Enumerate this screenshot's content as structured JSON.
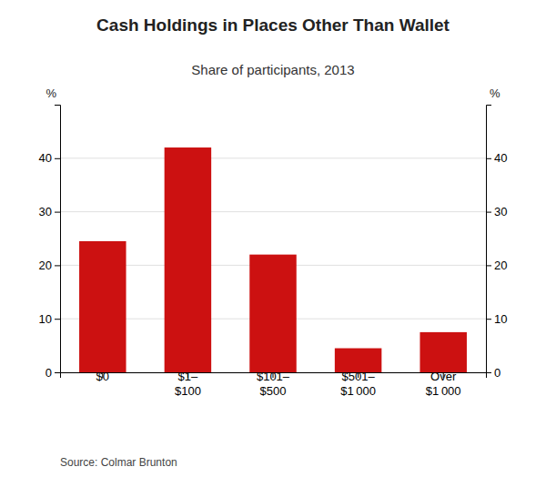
{
  "chart_data": {
    "type": "bar",
    "title": "Cash Holdings in Places Other Than Wallet",
    "subtitle": "Share of participants, 2013",
    "categories": [
      "$0",
      "$1–\n$100",
      "$101–\n$500",
      "$501–\n$1 000",
      "Over\n$1 000"
    ],
    "values": [
      24.5,
      42.0,
      22.0,
      4.5,
      7.5
    ],
    "color": "#cc1111",
    "ylim": [
      0,
      50
    ],
    "yticks": [
      0,
      10,
      20,
      30,
      40
    ],
    "y2lim": [
      0,
      50
    ],
    "y2ticks": [
      0,
      10,
      20,
      30,
      40
    ],
    "ylabel": "%",
    "y2label": "%",
    "source": "Source: Colmar Brunton",
    "grid": true
  }
}
